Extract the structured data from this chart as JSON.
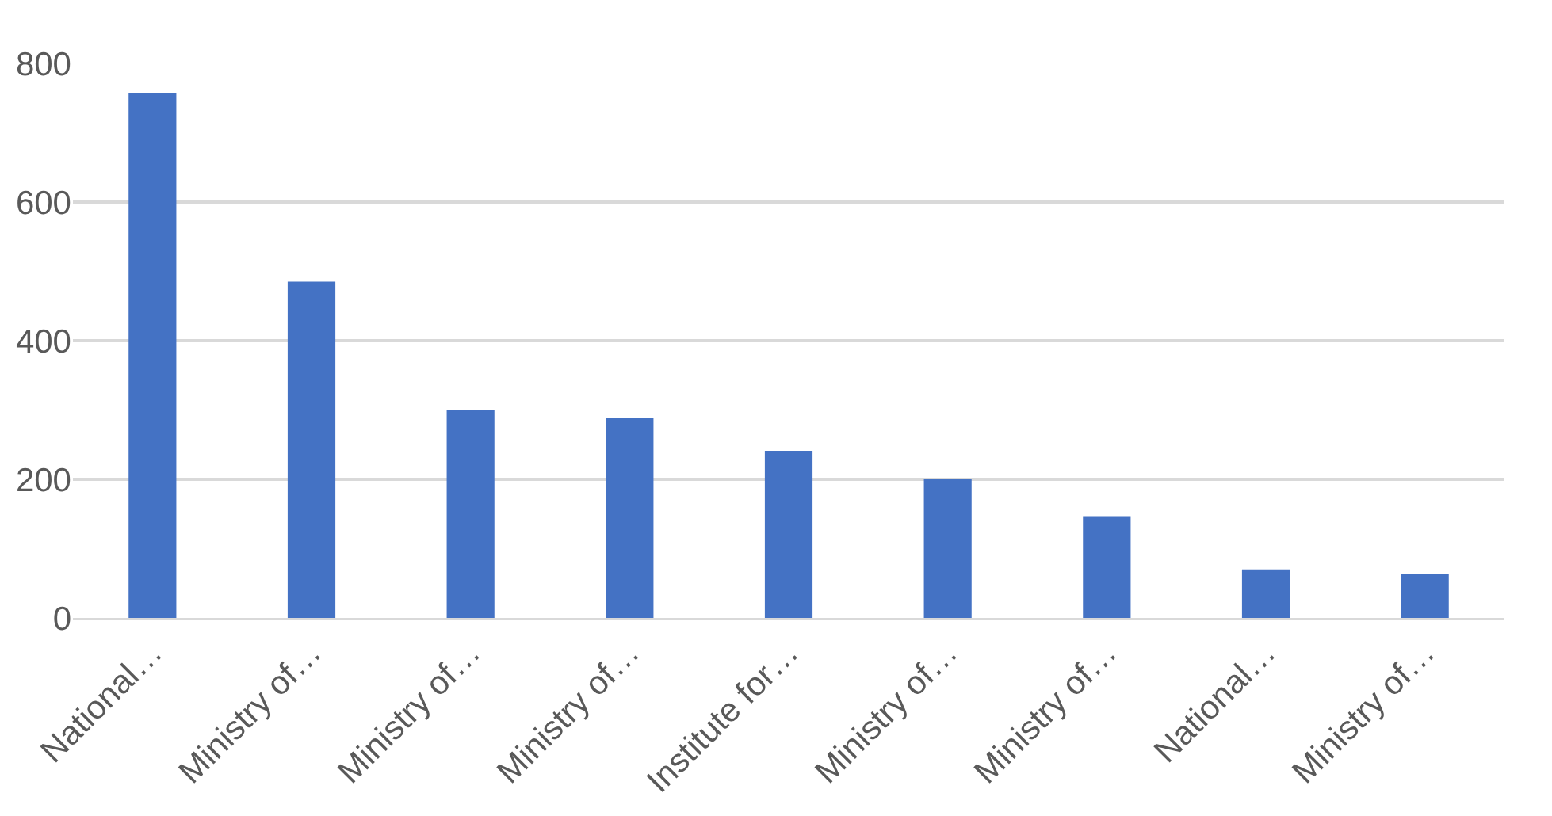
{
  "chart_data": {
    "type": "bar",
    "categories": [
      "National…",
      "Ministry of…",
      "Ministry of…",
      "Ministry of…",
      "Institute for…",
      "Ministry of…",
      "Ministry of…",
      "National…",
      "Ministry of…"
    ],
    "values": [
      757,
      485,
      300,
      289,
      241,
      200,
      147,
      70,
      64
    ],
    "color": "#4472c4",
    "ylim": [
      0,
      800
    ],
    "yticks": [
      0,
      200,
      400,
      600,
      800
    ],
    "grid": "y"
  }
}
